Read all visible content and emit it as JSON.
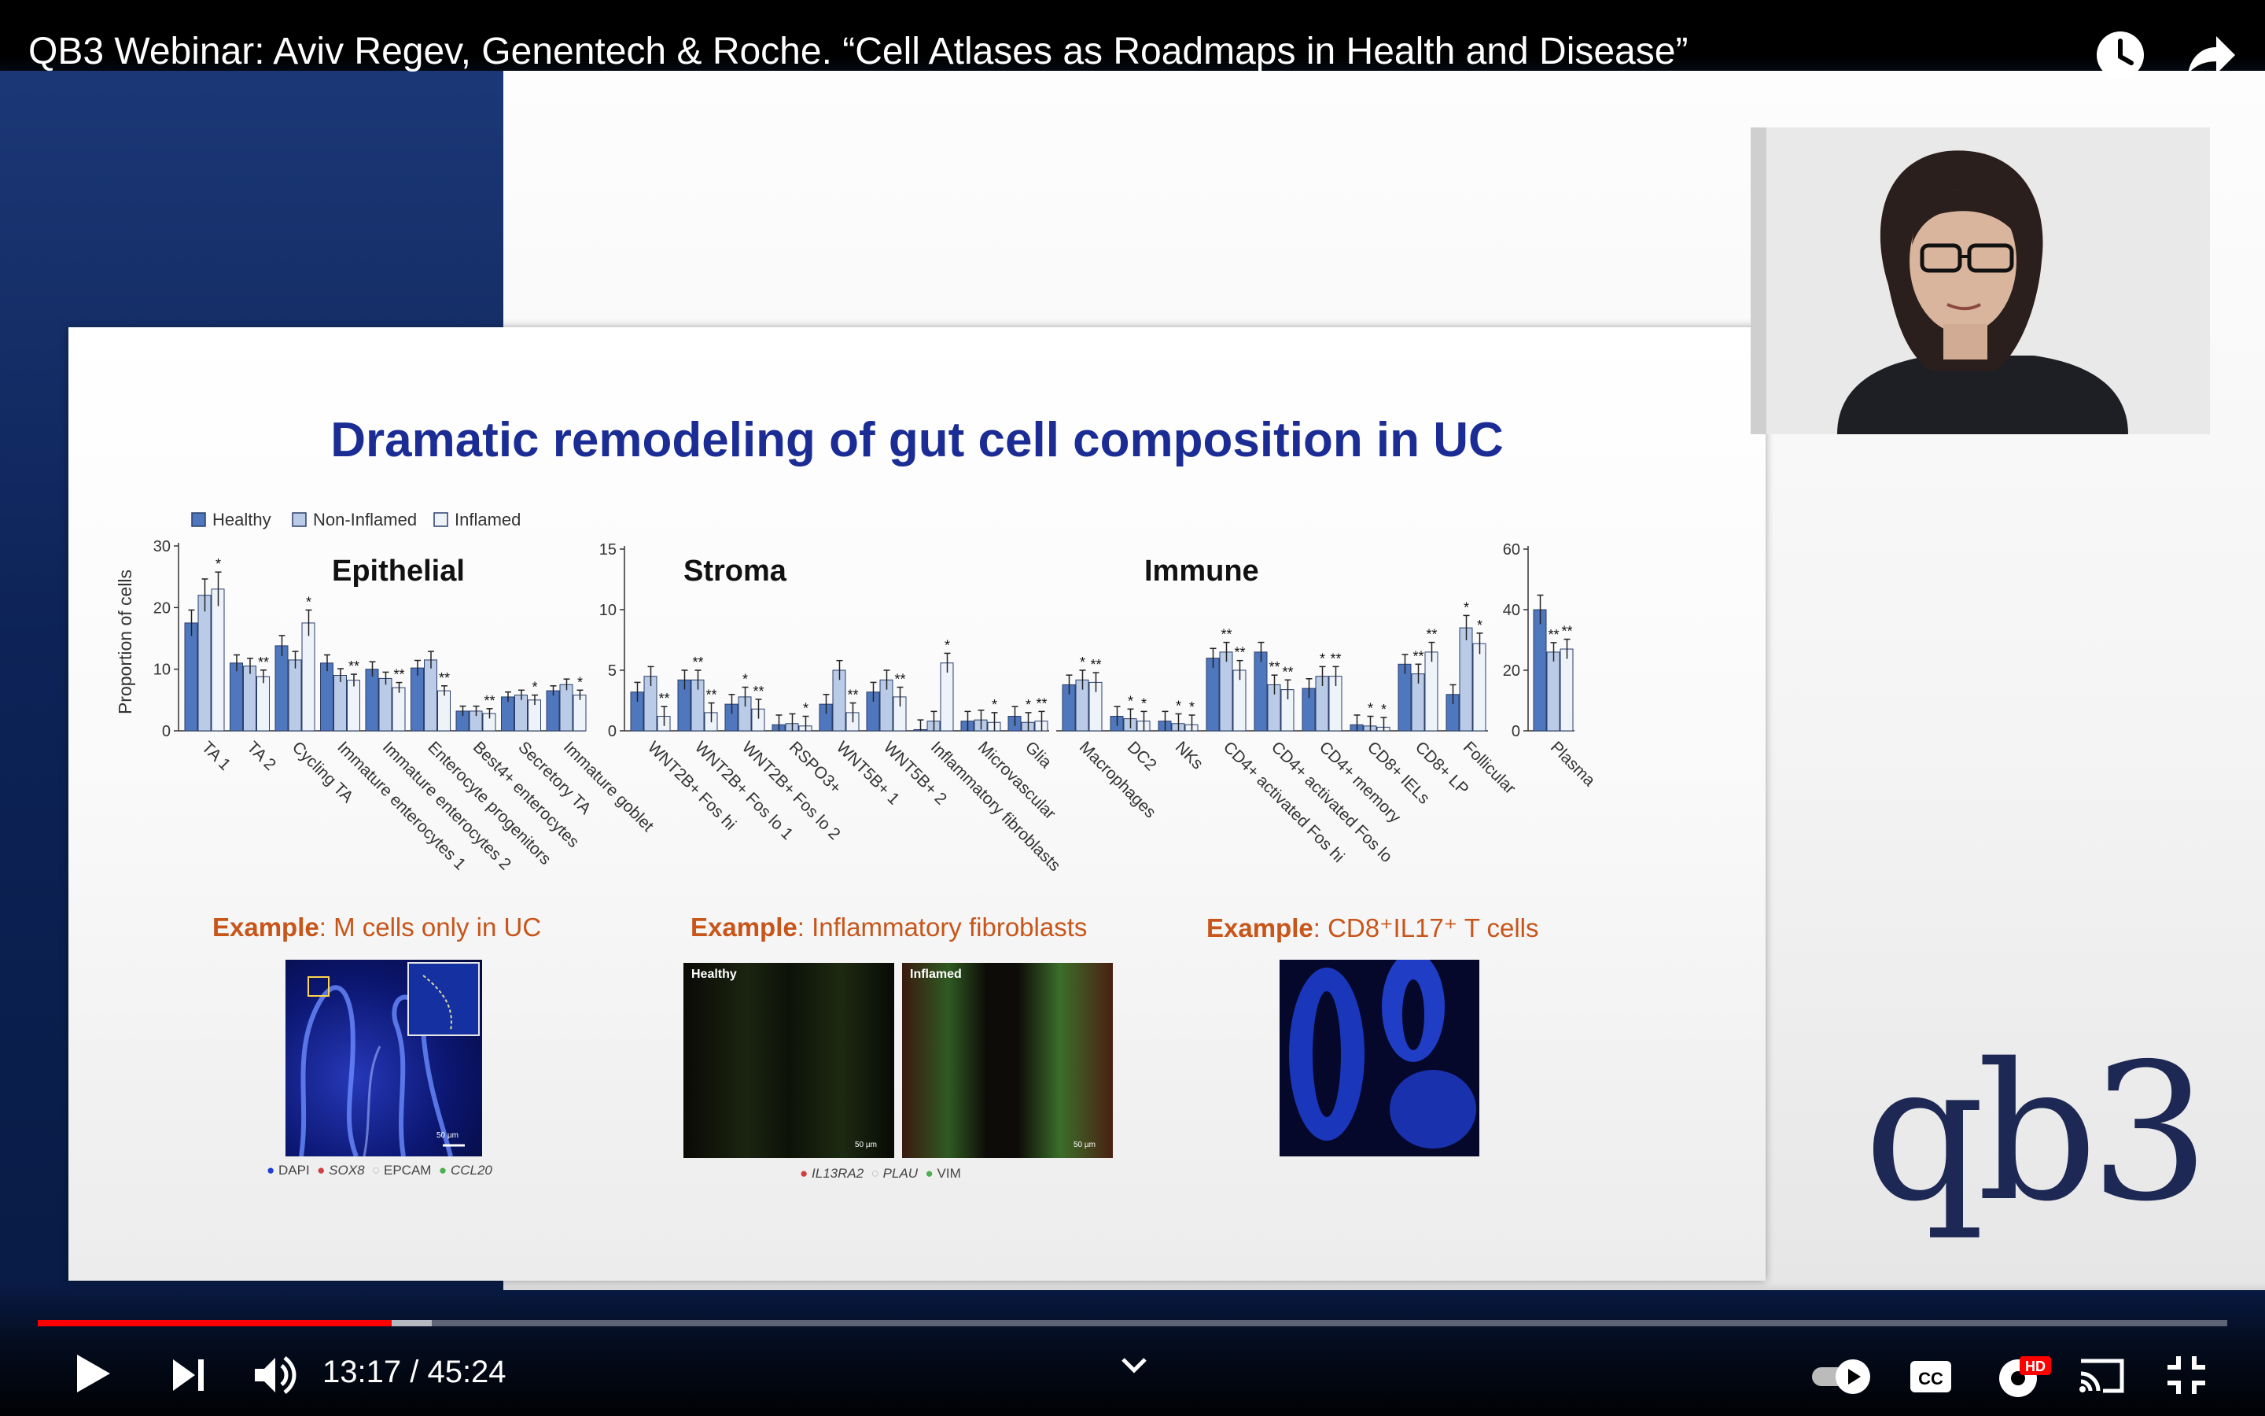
{
  "player": {
    "title": "QB3 Webinar: Aviv Regev, Genentech & Roche. “Cell Atlases as Roadmaps in Health and Disease”",
    "current_time": "13:17",
    "separator": " / ",
    "duration": "45:24",
    "progress_played_fraction": 0.1615,
    "progress_buffered_fraction": 0.18,
    "hd_badge": "HD",
    "cc_label": "CC",
    "icons": [
      "watch-later-icon",
      "share-icon",
      "play-icon",
      "next-icon",
      "volume-icon",
      "chevron-down-icon",
      "autoplay-toggle-icon",
      "captions-icon",
      "settings-icon",
      "cast-icon",
      "exit-fullscreen-icon"
    ]
  },
  "slide": {
    "title": "Dramatic remodeling of gut cell composition in UC",
    "logo": "qb3",
    "examples": [
      {
        "prefix": "Example",
        "text": ": M cells only in UC",
        "legend": [
          {
            "label": "DAPI",
            "color": "#1f3fd6"
          },
          {
            "label": "SOX8",
            "color": "#d04040"
          },
          {
            "label": "EPCAM",
            "color": "#cccccc"
          },
          {
            "label": "CCL20",
            "color": "#4caf50"
          }
        ]
      },
      {
        "prefix": "Example",
        "text": ": Inflammatory fibroblasts",
        "panels": [
          "Healthy",
          "Inflamed"
        ],
        "scale_bar": "50 µm",
        "legend": [
          {
            "label": "IL13RA2",
            "color": "#d04040"
          },
          {
            "label": "PLAU",
            "color": "#cccccc"
          },
          {
            "label": "VIM",
            "color": "#4caf50"
          }
        ]
      },
      {
        "prefix": "Example",
        "text": ": CD8⁺IL17⁺ T cells"
      }
    ],
    "scale_bar_m": "50 µm"
  },
  "chart_data": [
    {
      "type": "bar",
      "title": "Epithelial",
      "ylabel": "Proportion of cells",
      "ylim": [
        0,
        30
      ],
      "yticks": [
        0,
        10,
        20,
        30
      ],
      "legend": [
        "Healthy",
        "Non-Inflamed",
        "Inflamed"
      ],
      "colors": [
        "#4f77bd",
        "#b9cbe6",
        "#eef2f9"
      ],
      "categories": [
        "TA 1",
        "TA 2",
        "Cycling TA",
        "Immature enterocytes 1",
        "Immature enterocytes 2",
        "Enterocyte progenitors",
        "Best4+ enterocytes",
        "Secretory TA",
        "Immature goblet"
      ],
      "series": [
        {
          "name": "Healthy",
          "values": [
            17.5,
            11,
            13.8,
            11,
            10,
            10.2,
            3.2,
            5.5,
            6.5
          ]
        },
        {
          "name": "Non-Inflamed",
          "values": [
            22,
            10.5,
            11.5,
            9,
            8.5,
            11.5,
            3.2,
            5.8,
            7.5
          ]
        },
        {
          "name": "Inflamed",
          "values": [
            23,
            8.8,
            17.5,
            8.2,
            7,
            6.5,
            2.8,
            5,
            5.8
          ]
        }
      ],
      "significance": [
        [
          "",
          "",
          "*"
        ],
        [
          "",
          "",
          "**"
        ],
        [
          "",
          "",
          "*"
        ],
        [
          "",
          "",
          "**"
        ],
        [
          "",
          "",
          "**"
        ],
        [
          "",
          "",
          "**"
        ],
        [
          "",
          "",
          "**"
        ],
        [
          "",
          "",
          "*"
        ],
        [
          "",
          "",
          "*"
        ]
      ]
    },
    {
      "type": "bar",
      "title": "Stroma",
      "ylim": [
        0,
        15
      ],
      "yticks": [
        0,
        5,
        10,
        15
      ],
      "categories": [
        "WNT2B+ Fos hi",
        "WNT2B+ Fos lo 1",
        "WNT2B+ Fos lo 2",
        "RSPO3+",
        "WNT5B+ 1",
        "WNT5B+ 2",
        "Inflammatory fibroblasts",
        "Microvascular",
        "Glia"
      ],
      "series": [
        {
          "name": "Healthy",
          "values": [
            3.2,
            4.2,
            2.2,
            0.5,
            2.2,
            3.2,
            0.1,
            0.8,
            1.2
          ]
        },
        {
          "name": "Non-Inflamed",
          "values": [
            4.5,
            4.2,
            2.8,
            0.6,
            5,
            4.2,
            0.8,
            0.9,
            0.7
          ]
        },
        {
          "name": "Inflamed",
          "values": [
            1.2,
            1.5,
            1.8,
            0.4,
            1.5,
            2.8,
            5.6,
            0.7,
            0.8
          ]
        }
      ],
      "significance": [
        [
          "",
          "",
          "**"
        ],
        [
          "",
          "**",
          "**"
        ],
        [
          "",
          "*",
          "**"
        ],
        [
          "",
          "",
          "*"
        ],
        [
          "",
          "",
          "**"
        ],
        [
          "",
          "",
          "**"
        ],
        [
          "",
          "",
          "*"
        ],
        [
          "",
          "",
          "*"
        ],
        [
          "",
          "*",
          "**"
        ]
      ]
    },
    {
      "type": "bar",
      "title": "Immune",
      "categories": [
        "Macrophages",
        "DC2",
        "NKs",
        "CD4+ activated Fos hi",
        "CD4+ activated Fos lo",
        "CD4+ memory",
        "CD8+ IELs",
        "CD8+ LP",
        "Follicular"
      ],
      "series": [
        {
          "name": "Healthy",
          "values": [
            3.8,
            1.2,
            0.8,
            6,
            6.5,
            3.5,
            0.5,
            5.5,
            3
          ]
        },
        {
          "name": "Non-Inflamed",
          "values": [
            4.2,
            1,
            0.6,
            6.5,
            3.8,
            4.5,
            0.4,
            4.7,
            8.5
          ]
        },
        {
          "name": "Inflamed",
          "values": [
            4,
            0.8,
            0.5,
            5,
            3.4,
            4.5,
            0.3,
            6.5,
            7.2
          ]
        }
      ],
      "significance": [
        [
          "",
          "*",
          "**"
        ],
        [
          "",
          "*",
          "*"
        ],
        [
          "",
          "*",
          "*"
        ],
        [
          "",
          "**",
          "**"
        ],
        [
          "",
          "**",
          "**"
        ],
        [
          "",
          "*",
          "**"
        ],
        [
          "",
          "*",
          "*"
        ],
        [
          "",
          "**",
          "**"
        ],
        [
          "",
          "*",
          "*"
        ]
      ]
    },
    {
      "type": "bar",
      "ylim": [
        0,
        60
      ],
      "yticks": [
        0,
        20,
        40,
        60
      ],
      "categories": [
        "Plasma"
      ],
      "series": [
        {
          "name": "Healthy",
          "values": [
            40
          ]
        },
        {
          "name": "Non-Inflamed",
          "values": [
            26
          ]
        },
        {
          "name": "Inflamed",
          "values": [
            27
          ]
        }
      ],
      "significance": [
        [
          "",
          "**",
          "**"
        ]
      ]
    }
  ]
}
